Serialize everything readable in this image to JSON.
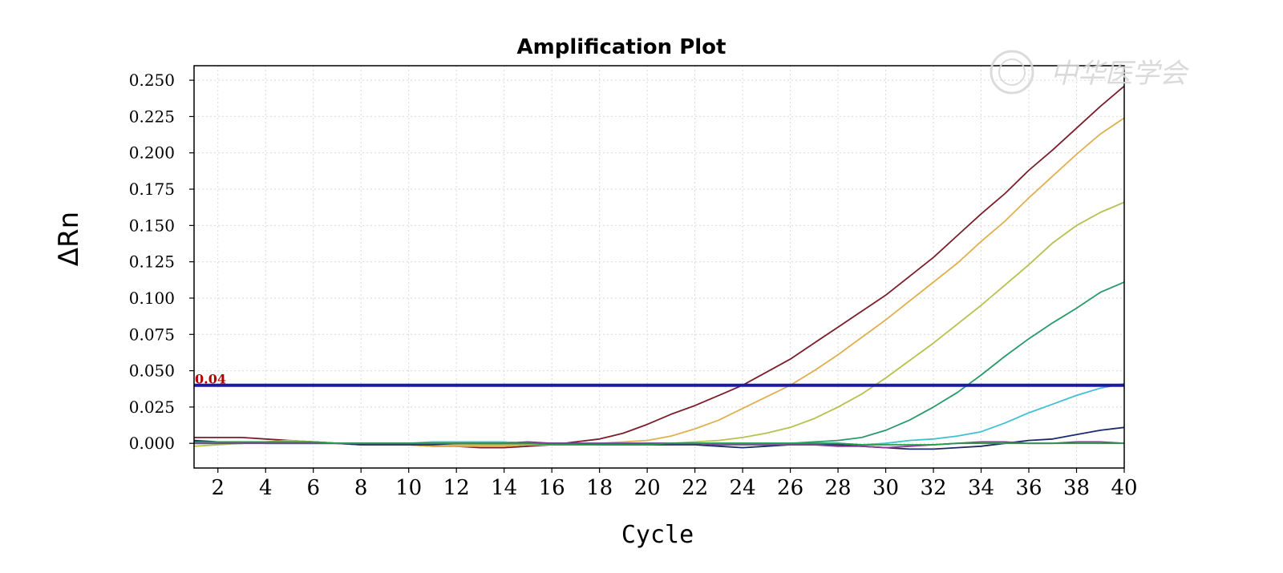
{
  "watermark": {
    "text": "中华医学会"
  },
  "colors": {
    "threshold": "#1a1aa6",
    "grid": "#d9d9d9",
    "axis": "#000000"
  },
  "chart_data": {
    "type": "line",
    "title": "Amplification Plot",
    "xlabel": "Cycle",
    "ylabel": "ΔRn",
    "xlim": [
      1,
      40
    ],
    "ylim": [
      -0.017,
      0.26
    ],
    "xticks": [
      2,
      4,
      6,
      8,
      10,
      12,
      14,
      16,
      18,
      20,
      22,
      24,
      26,
      28,
      30,
      32,
      34,
      36,
      38,
      40
    ],
    "yticks": [
      "0.000",
      "0.025",
      "0.050",
      "0.075",
      "0.100",
      "0.125",
      "0.150",
      "0.175",
      "0.200",
      "0.225",
      "0.250"
    ],
    "yticks_values": [
      0,
      0.025,
      0.05,
      0.075,
      0.1,
      0.125,
      0.15,
      0.175,
      0.2,
      0.225,
      0.25
    ],
    "grid": true,
    "threshold": {
      "value": 0.04,
      "label": "0.04"
    },
    "x": [
      1,
      2,
      3,
      4,
      5,
      6,
      7,
      8,
      9,
      10,
      11,
      12,
      13,
      14,
      15,
      16,
      17,
      18,
      19,
      20,
      21,
      22,
      23,
      24,
      25,
      26,
      27,
      28,
      29,
      30,
      31,
      32,
      33,
      34,
      35,
      36,
      37,
      38,
      39,
      40
    ],
    "series": [
      {
        "color": "#7a1f2a",
        "values": [
          0.004,
          0.004,
          0.004,
          0.003,
          0.002,
          0.001,
          0.0,
          -0.001,
          -0.001,
          -0.001,
          -0.002,
          -0.002,
          -0.003,
          -0.003,
          -0.002,
          -0.001,
          0.001,
          0.003,
          0.007,
          0.013,
          0.02,
          0.026,
          0.033,
          0.04,
          0.049,
          0.058,
          0.069,
          0.08,
          0.091,
          0.102,
          0.115,
          0.128,
          0.143,
          0.158,
          0.172,
          0.188,
          0.202,
          0.217,
          0.232,
          0.246
        ]
      },
      {
        "color": "#e0b050",
        "values": [
          0.0,
          0.0,
          0.0,
          0.001,
          0.002,
          0.001,
          0.0,
          -0.001,
          -0.001,
          -0.001,
          -0.002,
          -0.002,
          -0.002,
          -0.002,
          -0.001,
          -0.001,
          -0.001,
          0.0,
          0.001,
          0.002,
          0.005,
          0.01,
          0.016,
          0.024,
          0.032,
          0.04,
          0.05,
          0.061,
          0.073,
          0.085,
          0.098,
          0.111,
          0.124,
          0.139,
          0.153,
          0.169,
          0.184,
          0.199,
          0.213,
          0.224
        ]
      },
      {
        "color": "#b8c050",
        "values": [
          -0.002,
          -0.001,
          0.0,
          0.001,
          0.002,
          0.001,
          0.0,
          -0.001,
          -0.001,
          -0.001,
          -0.001,
          -0.001,
          -0.001,
          -0.001,
          -0.001,
          -0.001,
          -0.001,
          -0.001,
          -0.001,
          0.0,
          0.0,
          0.001,
          0.002,
          0.004,
          0.007,
          0.011,
          0.017,
          0.025,
          0.034,
          0.045,
          0.057,
          0.069,
          0.082,
          0.095,
          0.109,
          0.123,
          0.138,
          0.15,
          0.159,
          0.166
        ]
      },
      {
        "color": "#2a9a6a",
        "values": [
          0.0,
          0.0,
          0.001,
          0.001,
          0.001,
          0.001,
          0.0,
          0.0,
          0.0,
          0.0,
          0.0,
          0.0,
          0.0,
          0.0,
          0.0,
          0.0,
          0.0,
          0.0,
          0.0,
          0.0,
          0.0,
          0.0,
          0.0,
          0.0,
          0.0,
          0.0,
          0.001,
          0.002,
          0.004,
          0.009,
          0.016,
          0.025,
          0.035,
          0.047,
          0.06,
          0.072,
          0.083,
          0.093,
          0.104,
          0.111
        ]
      },
      {
        "color": "#40c0d0",
        "values": [
          0.0,
          0.0,
          0.0,
          0.001,
          0.001,
          0.001,
          0.0,
          0.0,
          0.0,
          0.0,
          0.001,
          0.001,
          0.001,
          0.001,
          0.0,
          0.0,
          0.0,
          0.0,
          0.0,
          0.0,
          0.0,
          0.0,
          0.0,
          0.0,
          0.0,
          0.0,
          0.0,
          0.0,
          -0.001,
          0.0,
          0.002,
          0.003,
          0.005,
          0.008,
          0.014,
          0.021,
          0.027,
          0.033,
          0.038,
          0.041
        ]
      },
      {
        "color": "#1a2a6a",
        "values": [
          0.002,
          0.001,
          0.001,
          0.0,
          0.0,
          0.0,
          0.0,
          -0.001,
          -0.001,
          -0.001,
          -0.001,
          0.0,
          0.0,
          0.0,
          0.0,
          0.0,
          0.0,
          -0.001,
          -0.001,
          -0.001,
          -0.001,
          -0.001,
          -0.002,
          -0.003,
          -0.002,
          -0.001,
          -0.001,
          -0.001,
          -0.002,
          -0.003,
          -0.004,
          -0.004,
          -0.003,
          -0.002,
          0.0,
          0.002,
          0.003,
          0.006,
          0.009,
          0.011
        ]
      },
      {
        "color": "#8a3a9a",
        "values": [
          0.0,
          0.0,
          0.0,
          0.0,
          0.0,
          0.0,
          0.0,
          0.0,
          0.0,
          0.0,
          0.0,
          0.0,
          0.0,
          0.0,
          0.001,
          0.0,
          0.0,
          0.0,
          0.0,
          0.0,
          0.0,
          0.0,
          -0.001,
          -0.001,
          -0.001,
          -0.001,
          -0.001,
          -0.002,
          -0.002,
          -0.003,
          -0.002,
          -0.001,
          0.0,
          0.001,
          0.001,
          0.0,
          0.0,
          0.001,
          0.001,
          0.0
        ]
      },
      {
        "color": "#20a040",
        "values": [
          0.001,
          0.001,
          0.001,
          0.001,
          0.001,
          0.001,
          0.0,
          0.0,
          0.0,
          0.0,
          0.0,
          0.0,
          0.0,
          0.0,
          0.0,
          -0.001,
          -0.001,
          -0.001,
          -0.001,
          -0.001,
          0.0,
          0.0,
          0.0,
          0.0,
          0.0,
          0.0,
          0.0,
          0.0,
          -0.001,
          -0.001,
          -0.001,
          -0.001,
          0.0,
          0.0,
          0.0,
          0.0,
          0.0,
          0.0,
          0.0,
          0.0
        ]
      }
    ]
  }
}
